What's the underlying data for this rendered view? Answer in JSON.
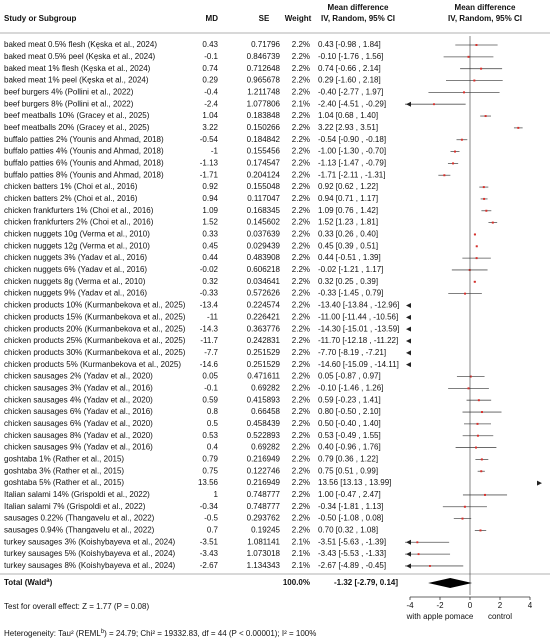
{
  "chart_data": {
    "type": "forest",
    "headers": {
      "study": "Study or Subgroup",
      "md": "MD",
      "se": "SE",
      "weight": "Weight",
      "ci_title": "Mean difference",
      "ci_sub": "IV, Random, 95% CI",
      "plot_title": "Mean difference",
      "plot_sub": "IV, Random, 95% CI"
    },
    "studies": [
      "baked meat 0.5% flesh (Kęska et al., 2024)",
      "baked meat 0.5% peel (Kęska et al., 2024)",
      "baked meat 1% flesh (Kęska et al., 2024)",
      "baked meat 1% peel (Kęska et al., 2024)",
      "beef burgers 4% (Pollini et al., 2022)",
      "beef burgers 8% (Pollini et al., 2022)",
      "beef meatballs 10% (Gracey et al., 2025)",
      "beef meatballs 20% (Gracey et al., 2025)",
      "buffalo patties 2% (Younis and Ahmad, 2018)",
      "buffalo patties 4% (Younis and Ahmad, 2018)",
      "buffalo patties 6% (Younis and Ahmad, 2018)",
      "buffalo patties 8% (Younis and Ahmad, 2018)",
      "chicken batters 1% (Choi et al., 2016)",
      "chicken batters 2% (Choi et al., 2016)",
      "chicken frankfurters 1% (Choi et al., 2016)",
      "chicken frankfurters 2% (Choi et al., 2016)",
      "chicken nuggets 10g (Verma et al., 2010)",
      "chicken nuggets 12g (Verma et al., 2010)",
      "chicken nuggets 3% (Yadav et al., 2016)",
      "chicken nuggets 6% (Yadav et al., 2016)",
      "chicken nuggets 8g (Verma et al., 2010)",
      "chicken nuggets 9% (Yadav et al., 2016)",
      "chicken products 10% (Kurmanbekova et al., 2025)",
      "chicken products 15% (Kurmanbekova et al., 2025)",
      "chicken products 20% (Kurmanbekova et al., 2025)",
      "chicken products 25% (Kurmanbekova et al., 2025)",
      "chicken products 30% (Kurmanbekova et al., 2025)",
      "chicken products 5% (Kurmanbekova et al., 2025)",
      "chicken sausages 2% (Yadav et al., 2020)",
      "chicken sausages 3% (Yadav et al., 2016)",
      "chicken sausages 4% (Yadav et al., 2020)",
      "chicken sausages 6% (Yadav et al., 2016)",
      "chicken sausages 6% (Yadav et al., 2020)",
      "chicken sausages 8% (Yadav et al., 2020)",
      "chicken sausages 9% (Yadav et al., 2016)",
      "goshtaba 1% (Rather et al., 2015)",
      "goshtaba 3% (Rather et al., 2015)",
      "goshtaba 5% (Rather et al., 2015)",
      "Italian salami 14% (Grispoldi et al., 2022)",
      "Italian salami 7% (Grispoldi et al., 2022)",
      "sausages 0.22% (Thangavelu et al., 2022)",
      "sausages 0.94% (Thangavelu et al., 2022)",
      "turkey sausages 3% (Koishybayeva et al., 2024)",
      "turkey sausages 5% (Koishybayeva et al., 2024)",
      "turkey sausages 8% (Koishybayeva et al., 2024)"
    ],
    "md": [
      0.43,
      -0.1,
      0.74,
      0.29,
      -0.4,
      -2.4,
      1.04,
      3.22,
      -0.54,
      -1,
      -1.13,
      -1.71,
      0.92,
      0.94,
      1.09,
      1.52,
      0.33,
      0.45,
      0.44,
      -0.02,
      0.32,
      -0.33,
      -13.4,
      -11,
      -14.3,
      -11.7,
      -7.7,
      -14.6,
      0.05,
      -0.1,
      0.59,
      0.8,
      0.5,
      0.53,
      0.4,
      0.79,
      0.75,
      13.56,
      1,
      -0.34,
      -0.5,
      0.7,
      -3.51,
      -3.43,
      -2.67
    ],
    "se": [
      0.71796,
      0.846739,
      0.712648,
      0.965678,
      1.211748,
      1.077806,
      0.183848,
      0.150266,
      0.184842,
      0.155456,
      0.174547,
      0.204124,
      0.155048,
      0.117047,
      0.168345,
      0.145602,
      0.037639,
      0.029439,
      0.483908,
      0.606218,
      0.034641,
      0.572626,
      0.224574,
      0.226421,
      0.363776,
      0.242831,
      0.251529,
      0.251529,
      0.471611,
      0.69282,
      0.415893,
      0.66458,
      0.458439,
      0.522893,
      0.69282,
      0.216949,
      0.122746,
      0.216949,
      0.748777,
      0.748777,
      0.293762,
      0.19245,
      1.081141,
      1.073018,
      1.134343
    ],
    "weights": [
      2.2,
      2.2,
      2.2,
      2.2,
      2.2,
      2.1,
      2.2,
      2.2,
      2.2,
      2.2,
      2.2,
      2.2,
      2.2,
      2.2,
      2.2,
      2.2,
      2.2,
      2.2,
      2.2,
      2.2,
      2.2,
      2.2,
      2.2,
      2.2,
      2.2,
      2.2,
      2.2,
      2.2,
      2.2,
      2.2,
      2.2,
      2.2,
      2.2,
      2.2,
      2.2,
      2.2,
      2.2,
      2.2,
      2.2,
      2.2,
      2.2,
      2.2,
      2.1,
      2.1,
      2.1
    ],
    "weight_labels": [
      "2.2%",
      "2.2%",
      "2.2%",
      "2.2%",
      "2.2%",
      "2.1%",
      "2.2%",
      "2.2%",
      "2.2%",
      "2.2%",
      "2.2%",
      "2.2%",
      "2.2%",
      "2.2%",
      "2.2%",
      "2.2%",
      "2.2%",
      "2.2%",
      "2.2%",
      "2.2%",
      "2.2%",
      "2.2%",
      "2.2%",
      "2.2%",
      "2.2%",
      "2.2%",
      "2.2%",
      "2.2%",
      "2.2%",
      "2.2%",
      "2.2%",
      "2.2%",
      "2.2%",
      "2.2%",
      "2.2%",
      "2.2%",
      "2.2%",
      "2.2%",
      "2.2%",
      "2.2%",
      "2.2%",
      "2.2%",
      "2.1%",
      "2.1%",
      "2.1%"
    ],
    "ci_low": [
      -0.98,
      -1.76,
      -0.66,
      -1.6,
      -2.77,
      -4.51,
      0.68,
      2.93,
      -0.9,
      -1.3,
      -1.47,
      -2.11,
      0.62,
      0.71,
      0.76,
      1.23,
      0.26,
      0.39,
      -0.51,
      -1.21,
      0.25,
      -1.45,
      -13.84,
      -11.44,
      -15.01,
      -12.18,
      -8.19,
      -15.09,
      -0.87,
      -1.46,
      -0.23,
      -0.5,
      -0.4,
      -0.49,
      -0.96,
      0.36,
      0.51,
      13.13,
      -0.47,
      -1.81,
      -1.08,
      0.32,
      -5.63,
      -5.53,
      -4.89
    ],
    "ci_high": [
      1.84,
      1.56,
      2.14,
      2.18,
      1.97,
      -0.29,
      1.4,
      3.51,
      -0.18,
      -0.7,
      -0.79,
      -1.31,
      1.22,
      1.17,
      1.42,
      1.81,
      0.4,
      0.51,
      1.39,
      1.17,
      0.39,
      0.79,
      -12.96,
      -10.56,
      -13.59,
      -11.22,
      -7.21,
      -14.11,
      0.97,
      1.26,
      1.41,
      2.1,
      1.4,
      1.55,
      1.76,
      1.22,
      0.99,
      13.99,
      2.47,
      1.13,
      0.08,
      1.08,
      -1.39,
      -1.33,
      -0.45
    ],
    "ci_labels": [
      "0.43 [-0.98 , 1.84]",
      "-0.10 [-1.76 , 1.56]",
      "0.74 [-0.66 , 2.14]",
      "0.29 [-1.60 , 2.18]",
      "-0.40 [-2.77 , 1.97]",
      "-2.40 [-4.51 , -0.29]",
      "1.04 [0.68 , 1.40]",
      "3.22 [2.93 , 3.51]",
      "-0.54 [-0.90 , -0.18]",
      "-1.00 [-1.30 , -0.70]",
      "-1.13 [-1.47 , -0.79]",
      "-1.71 [-2.11 , -1.31]",
      "0.92 [0.62 , 1.22]",
      "0.94 [0.71 , 1.17]",
      "1.09 [0.76 , 1.42]",
      "1.52 [1.23 , 1.81]",
      "0.33 [0.26 , 0.40]",
      "0.45 [0.39 , 0.51]",
      "0.44 [-0.51 , 1.39]",
      "-0.02 [-1.21 , 1.17]",
      "0.32 [0.25 , 0.39]",
      "-0.33 [-1.45 , 0.79]",
      "-13.40 [-13.84 , -12.96]",
      "-11.00 [-11.44 , -10.56]",
      "-14.30 [-15.01 , -13.59]",
      "-11.70 [-12.18 , -11.22]",
      "-7.70 [-8.19 , -7.21]",
      "-14.60 [-15.09 , -14.11]",
      "0.05 [-0.87 , 0.97]",
      "-0.10 [-1.46 , 1.26]",
      "0.59 [-0.23 , 1.41]",
      "0.80 [-0.50 , 2.10]",
      "0.50 [-0.40 , 1.40]",
      "0.53 [-0.49 , 1.55]",
      "0.40 [-0.96 , 1.76]",
      "0.79 [0.36 , 1.22]",
      "0.75 [0.51 , 0.99]",
      "13.56 [13.13 , 13.99]",
      "1.00 [-0.47 , 2.47]",
      "-0.34 [-1.81 , 1.13]",
      "-0.50 [-1.08 , 0.08]",
      "0.70 [0.32 , 1.08]",
      "-3.51 [-5.63 , -1.39]",
      "-3.43 [-5.53 , -1.33]",
      "-2.67 [-4.89 , -0.45]"
    ],
    "total": {
      "label": [
        "Total (Wald",
        "a",
        ")"
      ],
      "weight": 100.0,
      "weight_label": "100.0%",
      "md": -1.32,
      "ci_low": -2.79,
      "ci_high": 0.14,
      "ci_label": "-1.32 [-2.79, 0.14]"
    },
    "overall_effect": "Test for overall effect: Z = 1.77 (P = 0.08)",
    "heterogeneity": [
      "Heterogeneity: Tau² (REML",
      "b",
      ") = 24.79; Chi² = 19332.83, df = 44 (P < 0.00001); I² = 100%"
    ],
    "xlim": [
      -4,
      4
    ],
    "xticks": [
      -4,
      -2,
      0,
      2,
      4
    ],
    "x_left_label": "with apple pomace",
    "x_right_label": "control",
    "color": "#d9302c",
    "ci_color": "#555555"
  }
}
